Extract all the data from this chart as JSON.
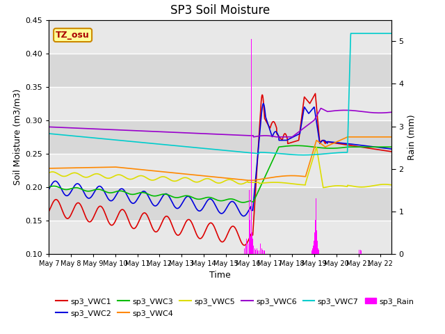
{
  "title": "SP3 Soil Moisture",
  "xlabel": "Time",
  "ylabel_left": "Soil Moisture (m3/m3)",
  "ylabel_right": "Rain (mm)",
  "ylim_left": [
    0.1,
    0.45
  ],
  "ylim_right": [
    0.0,
    5.5
  ],
  "x_tick_labels": [
    "May 7",
    "May 8",
    "May 9",
    "May 10",
    "May 11",
    "May 12",
    "May 13",
    "May 14",
    "May 15",
    "May 16",
    "May 17",
    "May 18",
    "May 19",
    "May 20",
    "May 21",
    "May 22"
  ],
  "colors": {
    "VWC1": "#dd0000",
    "VWC2": "#0000dd",
    "VWC3": "#00bb00",
    "VWC4": "#ff8800",
    "VWC5": "#dddd00",
    "VWC6": "#9900cc",
    "VWC7": "#00cccc",
    "Rain": "#ff00ff"
  },
  "bg_light": "#e8e8e8",
  "bg_dark": "#d8d8d8",
  "grid_color": "#ffffff",
  "annotation_text": "TZ_osu",
  "annotation_bg": "#ffff99",
  "annotation_border": "#cc8800"
}
